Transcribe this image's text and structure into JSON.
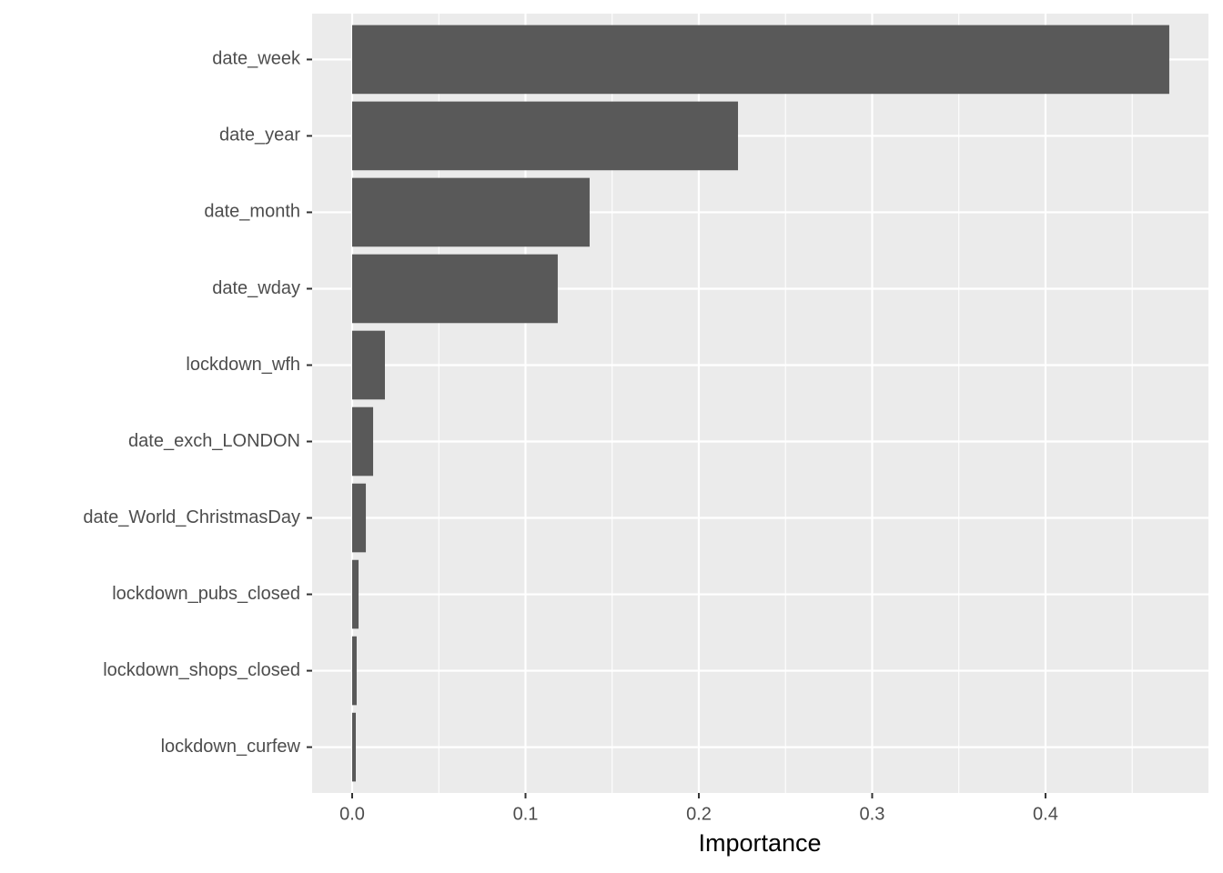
{
  "chart_data": {
    "type": "bar",
    "orientation": "horizontal",
    "x_label": "Importance",
    "categories": [
      "date_week",
      "date_year",
      "date_month",
      "date_wday",
      "lockdown_wfh",
      "date_exch_LONDON",
      "date_World_ChristmasDay",
      "lockdown_pubs_closed",
      "lockdown_shops_closed",
      "lockdown_curfew"
    ],
    "values": [
      0.4714,
      0.2226,
      0.137,
      0.1186,
      0.0189,
      0.0121,
      0.0079,
      0.0037,
      0.0026,
      0.0021
    ],
    "color": "#595959",
    "xlim": [
      -0.0231,
      0.494
    ],
    "xticks": [
      {
        "value": 0,
        "label": "0.0"
      },
      0.1,
      0.2,
      0.3,
      0.4
    ],
    "grid": true,
    "minor_grid": true
  }
}
